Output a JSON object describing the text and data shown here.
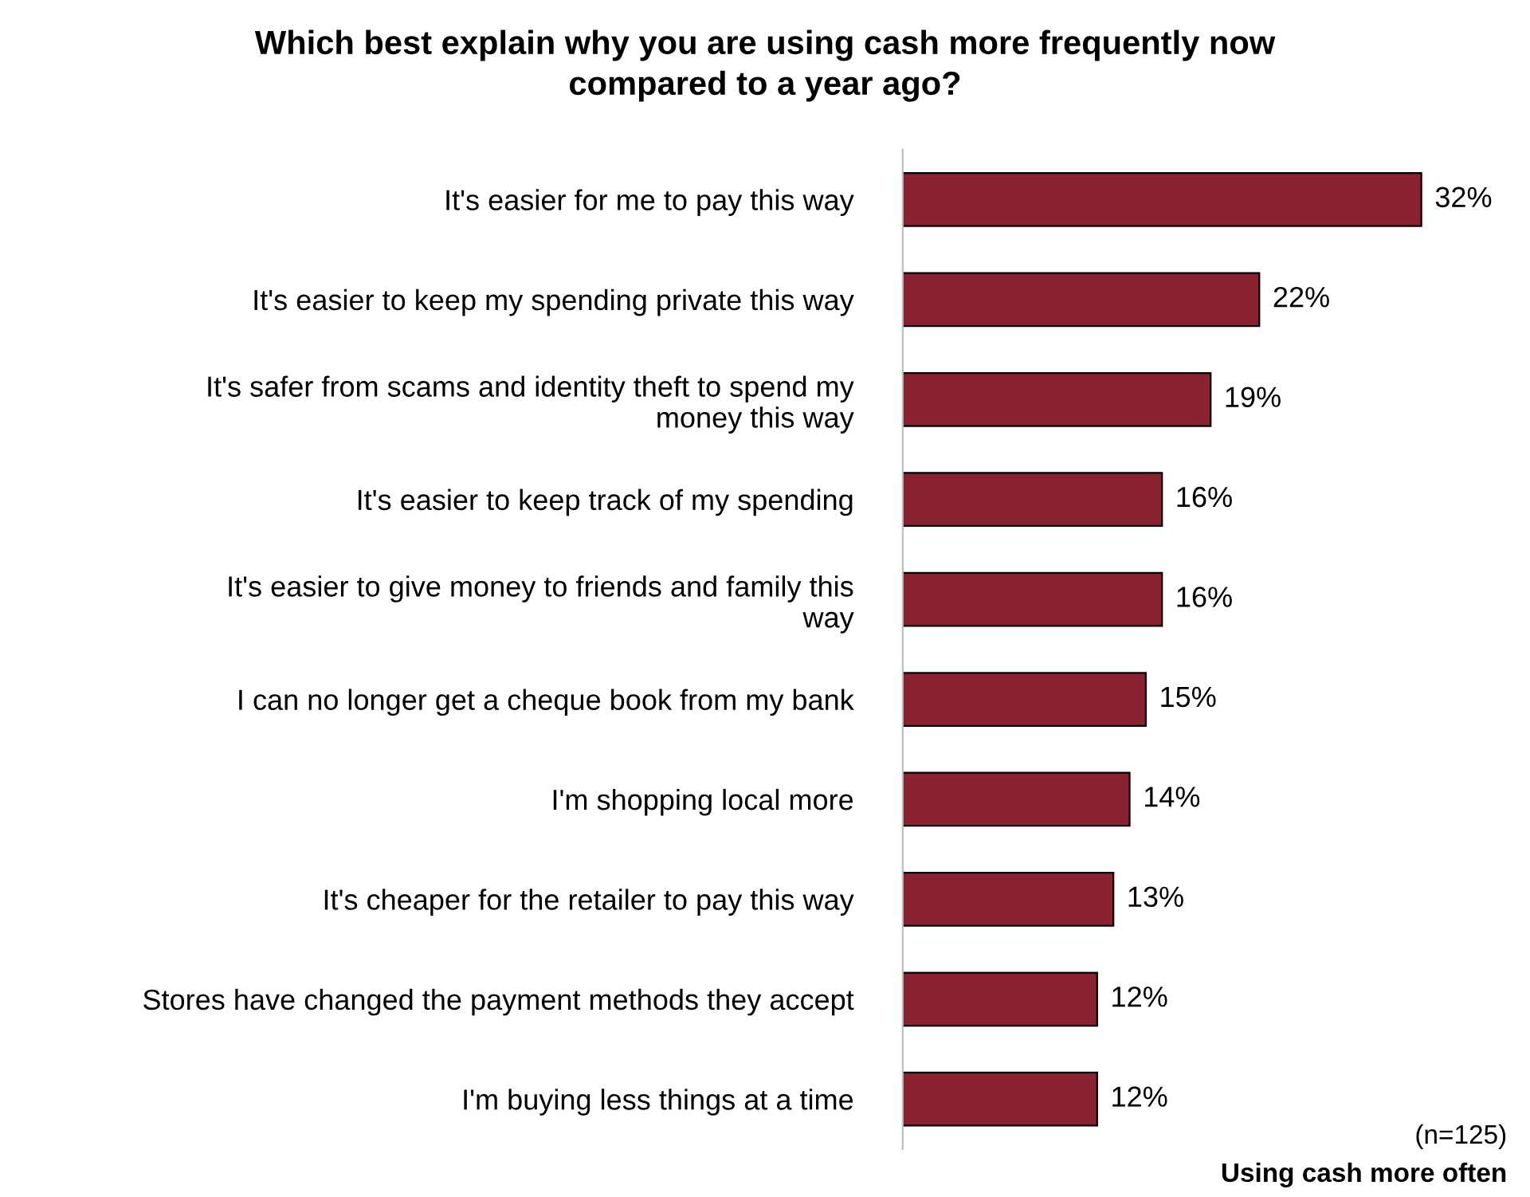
{
  "chart_data": {
    "type": "bar",
    "orientation": "horizontal",
    "title": "Which best explain why you are using cash more frequently now compared to a year ago?",
    "categories": [
      "It's easier for me to pay this way",
      "It's easier to keep my spending private this way",
      "It's safer from scams and identity theft to spend my money this way",
      "It's easier to keep track of my spending",
      "It's easier to give money to friends and family this way",
      "I can no longer get a cheque book from my bank",
      "I'm shopping local more",
      "It's cheaper for the retailer to pay this way",
      "Stores have changed the payment methods they accept",
      "I'm buying less things at a time"
    ],
    "series": [
      {
        "color": "#8b2232",
        "values": [
          32,
          22,
          19,
          16,
          16,
          15,
          14,
          13,
          12,
          12
        ],
        "value_labels": [
          "32%",
          "22%",
          "19%",
          "16%",
          "16%",
          "15%",
          "14%",
          "13%",
          "12%",
          "12%"
        ]
      }
    ],
    "xlabel": "Using cash more often",
    "annotations": [
      "(n=125)"
    ],
    "grid": false,
    "legend": false,
    "tick_labels": "y"
  }
}
